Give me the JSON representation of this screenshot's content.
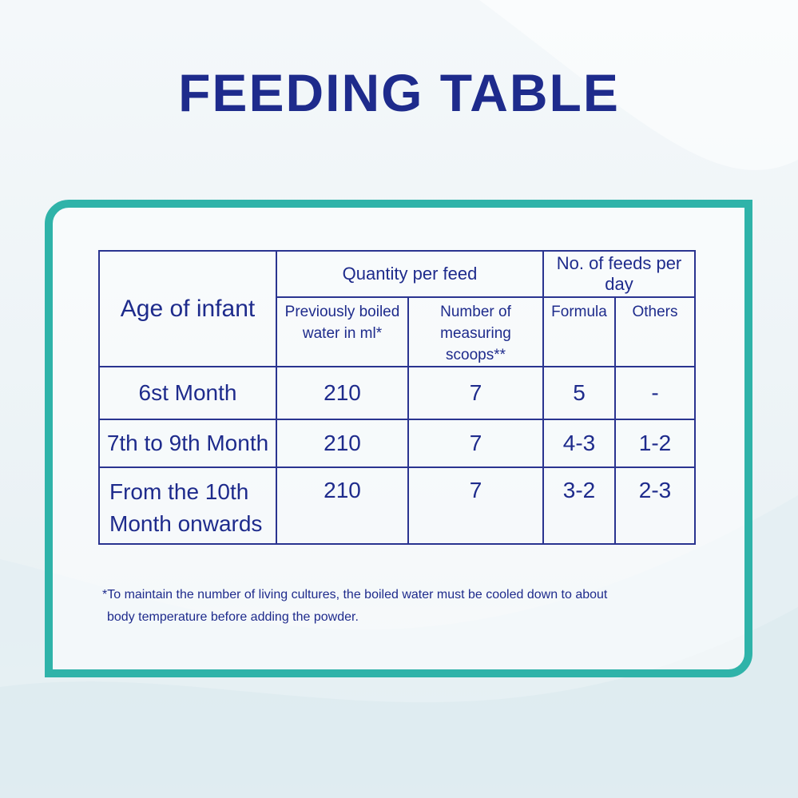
{
  "title": "FEEDING TABLE",
  "table": {
    "header": {
      "age": "Age of infant",
      "quantity_group": "Quantity per feed",
      "feeds_group": "No. of feeds per day",
      "water_line1": "Previously boiled",
      "water_line2": "water in ml*",
      "scoops_line1": "Number of",
      "scoops_line2": "measuring scoops**",
      "formula": "Formula",
      "others": "Others"
    },
    "rows": [
      {
        "age": "6st Month",
        "age_line2": "",
        "water": "210",
        "scoops": "7",
        "formula": "5",
        "others": "-"
      },
      {
        "age": "7th to 9th Month",
        "age_line2": "",
        "water": "210",
        "scoops": "7",
        "formula": "4-3",
        "others": "1-2"
      },
      {
        "age": "From the 10th",
        "age_line2": "Month onwards",
        "water": "210",
        "scoops": "7",
        "formula": "3-2",
        "others": "2-3"
      }
    ]
  },
  "footnote": {
    "line1": "*To maintain the number of living cultures, the boiled water must be cooled down to about",
    "line2": "body temperature  before adding the powder."
  },
  "colors": {
    "title": "#1e2b8c",
    "frame": "#2fb3a9",
    "table_border": "#2a3490"
  }
}
